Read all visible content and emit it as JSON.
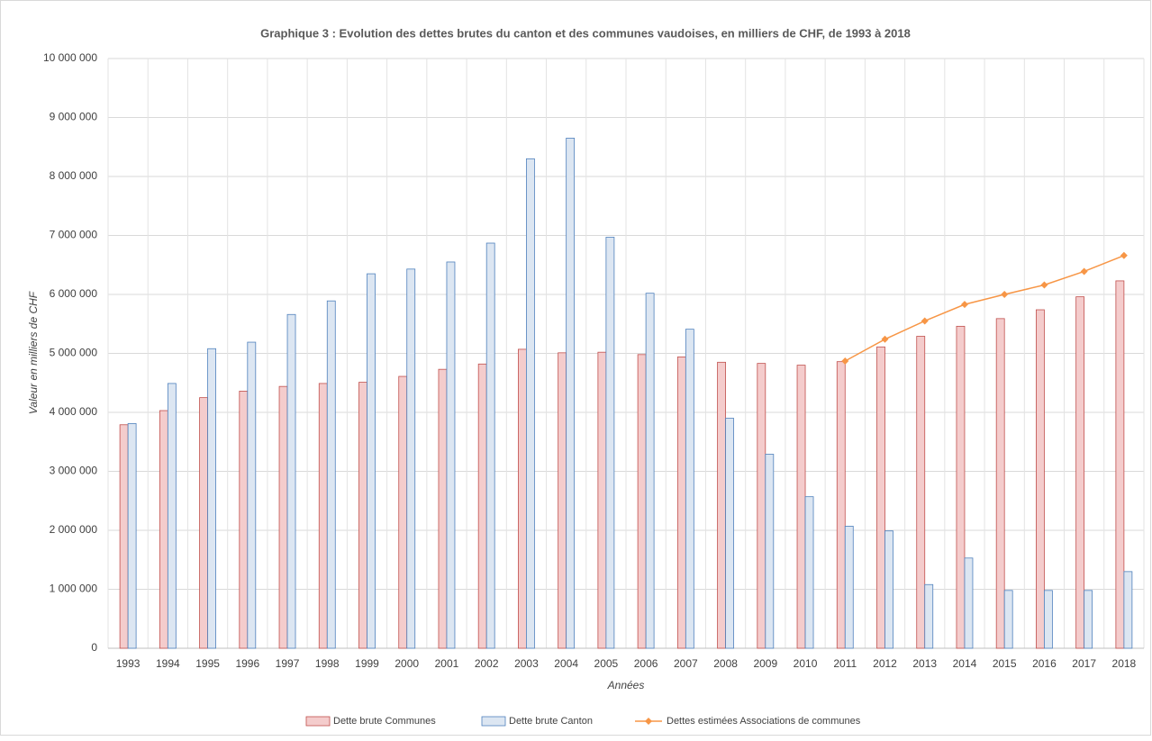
{
  "chart_data": {
    "type": "bar",
    "title": "Graphique 3 : Evolution des dettes brutes du canton et des communes  vaudoises, en milliers de CHF, de 1993 à 2018",
    "y_label": "Valeur en milliers de CHF",
    "x_label": "Années",
    "categories": [
      "1993",
      "1994",
      "1995",
      "1996",
      "1997",
      "1998",
      "1999",
      "2000",
      "2001",
      "2002",
      "2003",
      "2004",
      "2005",
      "2006",
      "2007",
      "2008",
      "2009",
      "2010",
      "2011",
      "2012",
      "2013",
      "2014",
      "2015",
      "2016",
      "2017",
      "2018"
    ],
    "series": [
      {
        "name": "Dette brute Communes",
        "type": "bar",
        "color": "#f4cccc",
        "stroke": "#c0504d",
        "values": [
          3790000,
          4030000,
          4250000,
          4360000,
          4440000,
          4490000,
          4510000,
          4610000,
          4730000,
          4820000,
          5070000,
          5010000,
          5020000,
          4980000,
          4940000,
          4850000,
          4830000,
          4800000,
          4860000,
          5110000,
          5290000,
          5460000,
          5590000,
          5740000,
          5960000,
          6230000
        ]
      },
      {
        "name": "Dette brute Canton",
        "type": "bar",
        "color": "#dce6f2",
        "stroke": "#4f81bd",
        "values": [
          3810000,
          4490000,
          5080000,
          5190000,
          5660000,
          5890000,
          6350000,
          6430000,
          6550000,
          6870000,
          8300000,
          8650000,
          6970000,
          6020000,
          5410000,
          3900000,
          3290000,
          2570000,
          2070000,
          1990000,
          1080000,
          1530000,
          980000,
          980000,
          980000,
          1300000
        ]
      },
      {
        "name": "Dettes estimées Associations de communes",
        "type": "line",
        "color": "#f79646",
        "values": [
          null,
          null,
          null,
          null,
          null,
          null,
          null,
          null,
          null,
          null,
          null,
          null,
          null,
          null,
          null,
          null,
          null,
          null,
          4870000,
          5240000,
          5550000,
          5830000,
          6000000,
          6160000,
          6390000,
          6660000
        ]
      }
    ],
    "ylim": [
      0,
      10000000
    ],
    "yticks": [
      0,
      {
        "value": 1000000,
        "label": "1 000 000"
      },
      {
        "value": 2000000,
        "label": "2 000 000"
      },
      {
        "value": 3000000,
        "label": "3 000 000"
      },
      {
        "value": 4000000,
        "label": "4 000 000"
      },
      {
        "value": 5000000,
        "label": "5 000 000"
      },
      {
        "value": 6000000,
        "label": "6 000 000"
      },
      {
        "value": 7000000,
        "label": "7 000 000"
      },
      {
        "value": 8000000,
        "label": "8 000 000"
      },
      {
        "value": 9000000,
        "label": "9 000 000"
      },
      {
        "value": 10000000,
        "label": "10 000 000"
      }
    ],
    "grid": true,
    "legend": "bottom"
  }
}
